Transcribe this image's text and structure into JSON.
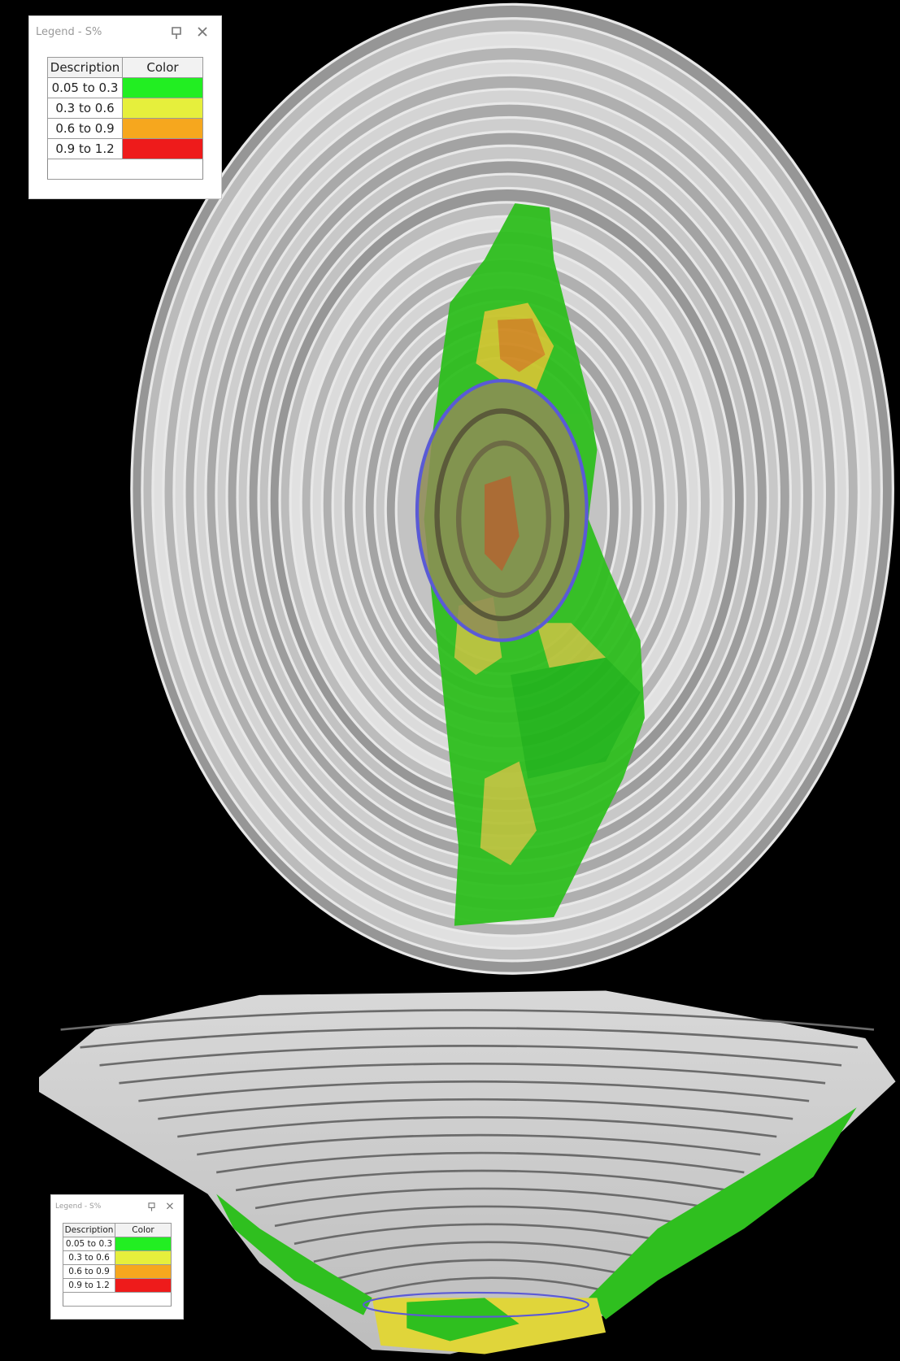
{
  "legends": [
    {
      "title": "Legend - S%",
      "header": [
        "Description",
        "Color"
      ],
      "rows": [
        {
          "description": "0.05 to 0.3",
          "color": "#22ee22"
        },
        {
          "description": "0.3 to 0.6",
          "color": "#e6ef3c"
        },
        {
          "description": "0.6 to 0.9",
          "color": "#f6a71e"
        },
        {
          "description": "0.9 to 1.2",
          "color": "#ee1b1b"
        }
      ]
    },
    {
      "title": "Legend - S%",
      "header": [
        "Description",
        "Color"
      ],
      "rows": [
        {
          "description": "0.05 to 0.3",
          "color": "#22ee22"
        },
        {
          "description": "0.3 to 0.6",
          "color": "#e6ef3c"
        },
        {
          "description": "0.6 to 0.9",
          "color": "#f6a71e"
        },
        {
          "description": "0.9 to 1.2",
          "color": "#ee1b1b"
        }
      ]
    }
  ]
}
